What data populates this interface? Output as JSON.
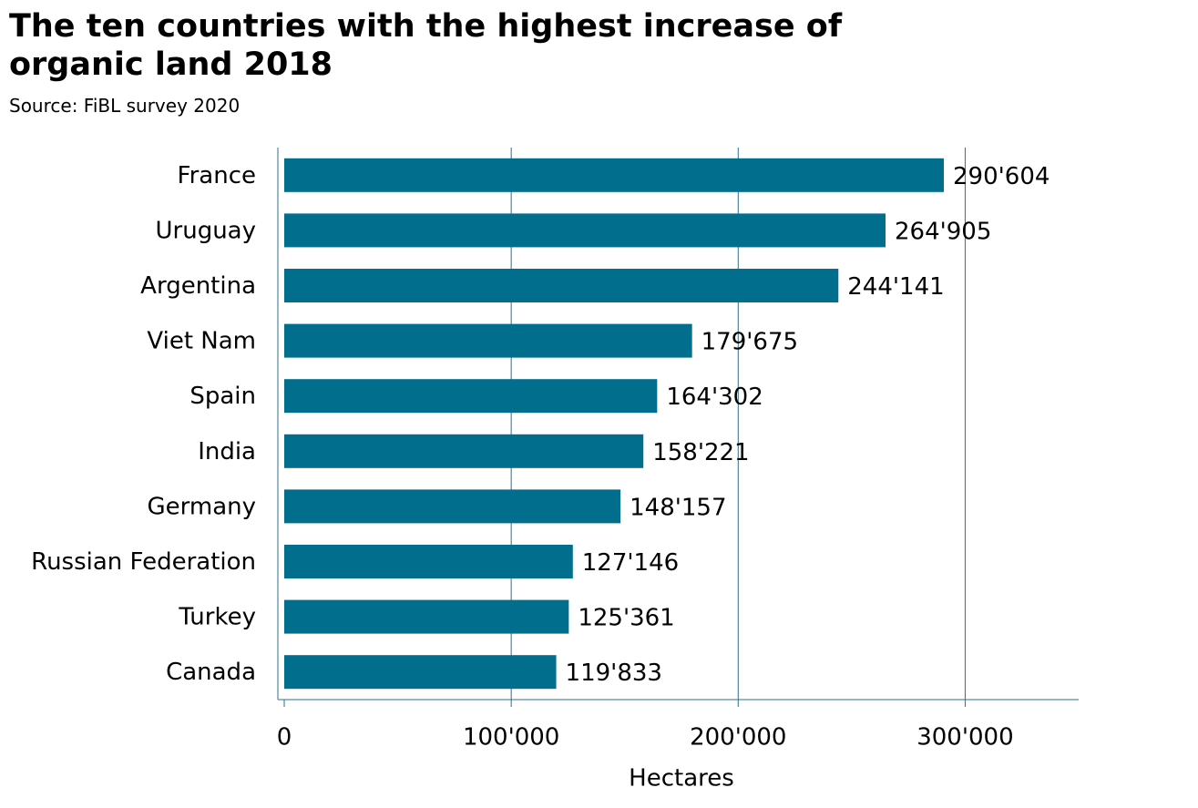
{
  "chart_data": {
    "type": "bar",
    "orientation": "horizontal",
    "title": "The ten countries with the highest increase of organic land 2018",
    "subtitle": "Source: FiBL survey 2020",
    "x_label": "Hectares",
    "categories": [
      "France",
      "Uruguay",
      "Argentina",
      "Viet Nam",
      "Spain",
      "India",
      "Germany",
      "Russian Federation",
      "Turkey",
      "Canada"
    ],
    "values": [
      290604,
      264905,
      244141,
      179675,
      164302,
      158221,
      148157,
      127146,
      125361,
      119833
    ],
    "value_labels": [
      "290'604",
      "264'905",
      "244'141",
      "179'675",
      "164'302",
      "158'221",
      "148'157",
      "127'146",
      "125'361",
      "119'833"
    ],
    "color": "#006e8c",
    "xlim": [
      0,
      350000
    ],
    "xticks": [
      0,
      {
        "value": 100000,
        "label": "100'000"
      },
      {
        "value": 200000,
        "label": "200'000"
      },
      {
        "value": 300000,
        "label": "300'000"
      }
    ],
    "grid": true
  }
}
